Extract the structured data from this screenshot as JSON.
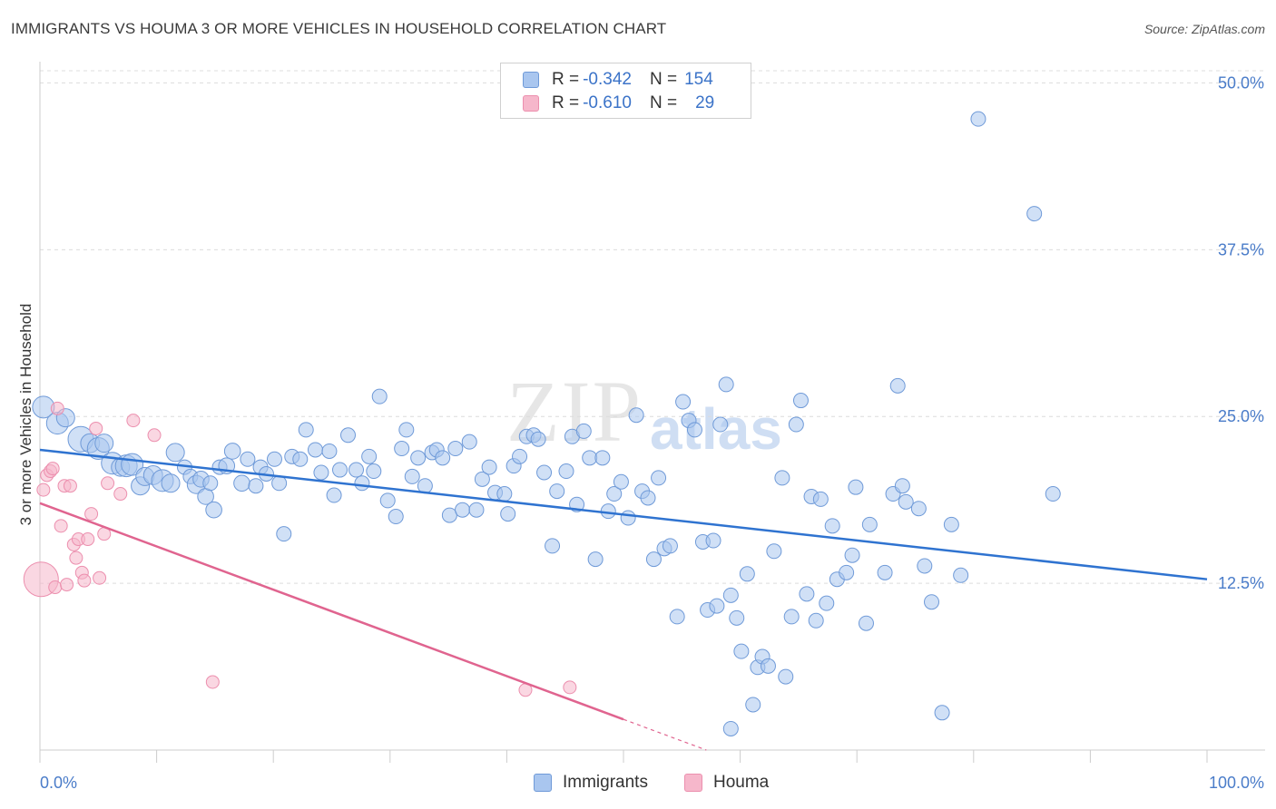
{
  "title": "IMMIGRANTS VS HOUMA 3 OR MORE VEHICLES IN HOUSEHOLD CORRELATION CHART",
  "source": "Source: ZipAtlas.com",
  "watermark": {
    "zip": "ZIP",
    "atlas": "atlas"
  },
  "legend": {
    "rows": [
      {
        "r_label": "R = ",
        "r_value": "-0.342",
        "n_label": "N = ",
        "n_value": "154",
        "color": "#a9c6ef"
      },
      {
        "r_label": "R = ",
        "r_value": "-0.610",
        "n_label": "N = ",
        "n_value": "29",
        "color": "#f6b7cb"
      }
    ]
  },
  "bottom_legend": [
    {
      "label": "Immigrants",
      "color": "#a9c6ef"
    },
    {
      "label": "Houma",
      "color": "#f6b7cb"
    }
  ],
  "chart_data": {
    "type": "scatter",
    "xlabel": "",
    "ylabel": "3 or more Vehicles in Household",
    "xlim": [
      0,
      100
    ],
    "ylim": [
      0,
      52
    ],
    "x_ticks": [
      "0.0%",
      "100.0%"
    ],
    "y_ticks": [
      {
        "value": 12.5,
        "label": "12.5%"
      },
      {
        "value": 25.0,
        "label": "25.0%"
      },
      {
        "value": 37.5,
        "label": "37.5%"
      },
      {
        "value": 50.0,
        "label": "50.0%"
      }
    ],
    "grid": true,
    "colors": {
      "immigrants_fill": "#a9c6ef",
      "immigrants_stroke": "#6f9ad8",
      "immigrants_line": "#2f73d0",
      "houma_fill": "#f6b7cb",
      "houma_stroke": "#ec8fae",
      "houma_line": "#e0648f"
    },
    "series": [
      {
        "name": "Immigrants",
        "trend": {
          "x": [
            0,
            100
          ],
          "y": [
            22.5,
            12.8
          ]
        },
        "points": [
          [
            0.3,
            25.7,
            2
          ],
          [
            1.5,
            24.5,
            2
          ],
          [
            2.2,
            24.9,
            1.5
          ],
          [
            3.5,
            23.3,
            2.5
          ],
          [
            4.3,
            23.0,
            1.6
          ],
          [
            5.0,
            22.6,
            2
          ],
          [
            5.5,
            23.0,
            1.5
          ],
          [
            6.2,
            21.5,
            2
          ],
          [
            6.9,
            21.2,
            1.5
          ],
          [
            7.4,
            21.3,
            2
          ],
          [
            7.9,
            21.4,
            2
          ],
          [
            8.6,
            19.8,
            1.5
          ],
          [
            9.0,
            20.5,
            1.5
          ],
          [
            9.7,
            20.6,
            1.6
          ],
          [
            10.5,
            20.2,
            2
          ],
          [
            11.2,
            20.0,
            1.5
          ],
          [
            11.6,
            22.3,
            1.5
          ],
          [
            12.4,
            21.2,
            1
          ],
          [
            12.9,
            20.5,
            1
          ],
          [
            13.4,
            19.9,
            1.5
          ],
          [
            13.8,
            20.3,
            1.2
          ],
          [
            14.2,
            19.0,
            1.2
          ],
          [
            14.6,
            20.0,
            1
          ],
          [
            14.9,
            18.0,
            1.2
          ],
          [
            15.4,
            21.2,
            1
          ],
          [
            16.0,
            21.3,
            1.2
          ],
          [
            16.5,
            22.4,
            1.2
          ],
          [
            17.3,
            20.0,
            1.2
          ],
          [
            17.8,
            21.8,
            1
          ],
          [
            18.5,
            19.8,
            1
          ],
          [
            18.9,
            21.2,
            1
          ],
          [
            19.4,
            20.7,
            1
          ],
          [
            20.1,
            21.8,
            1
          ],
          [
            20.5,
            20.0,
            1
          ],
          [
            20.9,
            16.2,
            1
          ],
          [
            21.6,
            22.0,
            1
          ],
          [
            22.3,
            21.8,
            1
          ],
          [
            22.8,
            24.0,
            1
          ],
          [
            23.6,
            22.5,
            1
          ],
          [
            24.1,
            20.8,
            1
          ],
          [
            24.8,
            22.4,
            1
          ],
          [
            25.2,
            19.1,
            1
          ],
          [
            25.7,
            21.0,
            1
          ],
          [
            26.4,
            23.6,
            1
          ],
          [
            27.1,
            21.0,
            1
          ],
          [
            27.6,
            20.0,
            1
          ],
          [
            28.2,
            22.0,
            1
          ],
          [
            28.6,
            20.9,
            1
          ],
          [
            29.1,
            26.5,
            1
          ],
          [
            29.8,
            18.7,
            1
          ],
          [
            30.5,
            17.5,
            1
          ],
          [
            31.0,
            22.6,
            1
          ],
          [
            31.4,
            24.0,
            1
          ],
          [
            31.9,
            20.5,
            1
          ],
          [
            32.4,
            21.9,
            1
          ],
          [
            33.0,
            19.8,
            1
          ],
          [
            33.6,
            22.3,
            1
          ],
          [
            34.0,
            22.5,
            1
          ],
          [
            34.5,
            21.9,
            1
          ],
          [
            35.1,
            17.6,
            1
          ],
          [
            35.6,
            22.6,
            1
          ],
          [
            36.2,
            18.0,
            1
          ],
          [
            36.8,
            23.1,
            1
          ],
          [
            37.4,
            18.0,
            1
          ],
          [
            37.9,
            20.3,
            1
          ],
          [
            38.5,
            21.2,
            1
          ],
          [
            39.0,
            19.3,
            1
          ],
          [
            39.8,
            19.2,
            1
          ],
          [
            40.1,
            17.7,
            1
          ],
          [
            40.6,
            21.3,
            1
          ],
          [
            41.1,
            22.0,
            1
          ],
          [
            41.7,
            23.5,
            1
          ],
          [
            42.3,
            23.6,
            1
          ],
          [
            42.7,
            23.3,
            1
          ],
          [
            43.2,
            20.8,
            1
          ],
          [
            43.9,
            15.3,
            1
          ],
          [
            44.3,
            19.4,
            1
          ],
          [
            45.1,
            20.9,
            1
          ],
          [
            45.6,
            23.5,
            1
          ],
          [
            46.0,
            18.4,
            1
          ],
          [
            46.6,
            23.9,
            1
          ],
          [
            47.1,
            21.9,
            1
          ],
          [
            47.6,
            14.3,
            1
          ],
          [
            48.2,
            21.9,
            1
          ],
          [
            48.7,
            17.9,
            1
          ],
          [
            49.2,
            19.2,
            1
          ],
          [
            49.8,
            20.1,
            1
          ],
          [
            50.4,
            17.4,
            1
          ],
          [
            51.1,
            25.1,
            1
          ],
          [
            51.6,
            19.4,
            1
          ],
          [
            52.1,
            18.9,
            1
          ],
          [
            52.6,
            14.3,
            1
          ],
          [
            53.0,
            20.4,
            1
          ],
          [
            53.5,
            15.1,
            1
          ],
          [
            54.0,
            15.3,
            1
          ],
          [
            54.6,
            10.0,
            1
          ],
          [
            55.1,
            26.1,
            1
          ],
          [
            55.6,
            24.7,
            1
          ],
          [
            56.1,
            24.0,
            1
          ],
          [
            56.8,
            15.6,
            1
          ],
          [
            57.2,
            10.5,
            1
          ],
          [
            57.7,
            15.7,
            1
          ],
          [
            58.0,
            10.8,
            1
          ],
          [
            58.3,
            24.4,
            1
          ],
          [
            58.8,
            27.4,
            1
          ],
          [
            59.2,
            11.6,
            1
          ],
          [
            59.7,
            9.9,
            1
          ],
          [
            60.1,
            7.4,
            1
          ],
          [
            60.6,
            13.2,
            1
          ],
          [
            61.1,
            3.4,
            1
          ],
          [
            61.5,
            6.2,
            1
          ],
          [
            61.9,
            7.0,
            1
          ],
          [
            62.4,
            6.3,
            1
          ],
          [
            62.9,
            14.9,
            1
          ],
          [
            63.6,
            20.4,
            1
          ],
          [
            63.9,
            5.5,
            1
          ],
          [
            64.4,
            10.0,
            1
          ],
          [
            64.8,
            24.4,
            1
          ],
          [
            65.2,
            26.2,
            1
          ],
          [
            65.7,
            11.7,
            1
          ],
          [
            66.1,
            19.0,
            1
          ],
          [
            66.5,
            9.7,
            1
          ],
          [
            66.9,
            18.8,
            1
          ],
          [
            67.4,
            11.0,
            1
          ],
          [
            67.9,
            16.8,
            1
          ],
          [
            68.3,
            12.8,
            1
          ],
          [
            69.1,
            13.3,
            1
          ],
          [
            69.6,
            14.6,
            1
          ],
          [
            69.9,
            19.7,
            1
          ],
          [
            70.8,
            9.5,
            1
          ],
          [
            71.1,
            16.9,
            1
          ],
          [
            72.4,
            13.3,
            1
          ],
          [
            73.1,
            19.2,
            1
          ],
          [
            73.5,
            27.3,
            1
          ],
          [
            73.9,
            19.8,
            1
          ],
          [
            74.2,
            18.6,
            1
          ],
          [
            75.3,
            18.1,
            1
          ],
          [
            75.8,
            13.8,
            1
          ],
          [
            76.4,
            11.1,
            1
          ],
          [
            77.3,
            2.8,
            1
          ],
          [
            78.1,
            16.9,
            1
          ],
          [
            78.9,
            13.1,
            1
          ],
          [
            80.4,
            47.3,
            1
          ],
          [
            85.2,
            40.2,
            1
          ],
          [
            86.8,
            19.2,
            1
          ],
          [
            59.2,
            1.6,
            1
          ]
        ]
      },
      {
        "name": "Houma",
        "trend": {
          "x": [
            0,
            50
          ],
          "y": [
            18.5,
            2.3
          ]
        },
        "points": [
          [
            0.1,
            12.8,
            2.2
          ],
          [
            0.3,
            19.5,
            1
          ],
          [
            0.6,
            20.6,
            1
          ],
          [
            0.9,
            20.9,
            1
          ],
          [
            1.1,
            21.1,
            1
          ],
          [
            1.3,
            12.2,
            1
          ],
          [
            1.5,
            25.6,
            1
          ],
          [
            1.8,
            16.8,
            1
          ],
          [
            2.1,
            19.8,
            1
          ],
          [
            2.3,
            12.4,
            1
          ],
          [
            2.6,
            19.8,
            1
          ],
          [
            2.9,
            15.4,
            1
          ],
          [
            3.1,
            14.4,
            1
          ],
          [
            3.3,
            15.8,
            1
          ],
          [
            3.6,
            13.3,
            1
          ],
          [
            3.8,
            12.7,
            1
          ],
          [
            4.1,
            15.8,
            1
          ],
          [
            4.4,
            17.7,
            1
          ],
          [
            4.8,
            24.1,
            1
          ],
          [
            5.1,
            12.9,
            1
          ],
          [
            5.5,
            16.2,
            1
          ],
          [
            5.8,
            20.0,
            1
          ],
          [
            6.9,
            19.2,
            1
          ],
          [
            8.0,
            24.7,
            1
          ],
          [
            9.8,
            23.6,
            1
          ],
          [
            14.8,
            5.1,
            1
          ],
          [
            41.6,
            4.5,
            1
          ],
          [
            45.4,
            4.7,
            1
          ]
        ]
      }
    ]
  }
}
